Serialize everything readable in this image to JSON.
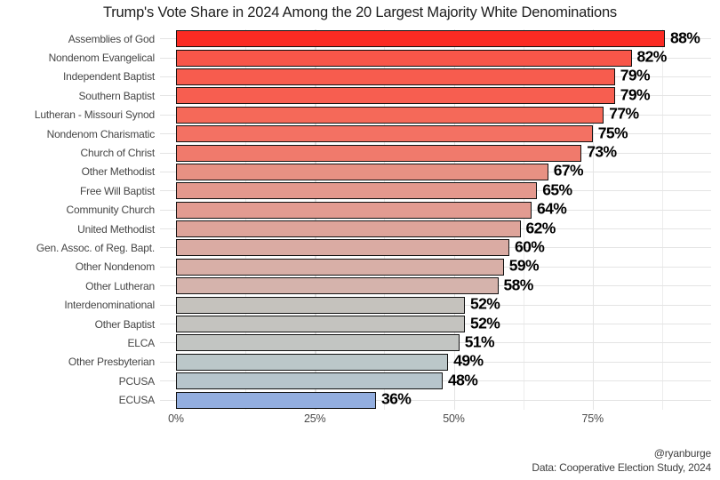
{
  "title": "Trump's Vote Share in 2024 Among the 20 Largest Majority White Denominations",
  "caption": {
    "handle": "@ryanburge",
    "source": "Data: Cooperative Election Study, 2024"
  },
  "chart_data": {
    "type": "bar",
    "orientation": "horizontal",
    "title": "Trump's Vote Share in 2024 Among the 20 Largest Majority White Denominations",
    "xlabel": "",
    "ylabel": "",
    "xlim": [
      0,
      96
    ],
    "grid": true,
    "legend": "none",
    "categories": [
      "Assemblies of God",
      "Nondenom Evangelical",
      "Independent Baptist",
      "Southern Baptist",
      "Lutheran - Missouri Synod",
      "Nondenom Charismatic",
      "Church of Christ",
      "Other Methodist",
      "Free Will Baptist",
      "Community Church",
      "United Methodist",
      "Gen. Assoc. of Reg. Bapt.",
      "Other Nondenom",
      "Other Lutheran",
      "Interdenominational",
      "Other Baptist",
      "ELCA",
      "Other Presbyterian",
      "PCUSA",
      "ECUSA"
    ],
    "values": [
      88,
      82,
      79,
      79,
      77,
      75,
      73,
      67,
      65,
      64,
      62,
      60,
      59,
      58,
      52,
      52,
      51,
      49,
      48,
      36
    ],
    "value_labels": [
      "88%",
      "82%",
      "79%",
      "79%",
      "77%",
      "75%",
      "73%",
      "67%",
      "65%",
      "64%",
      "62%",
      "60%",
      "59%",
      "58%",
      "52%",
      "52%",
      "51%",
      "49%",
      "48%",
      "36%"
    ],
    "bar_colors": [
      "#FB2B23",
      "#F85649",
      "#F75C4E",
      "#F75E50",
      "#F56959",
      "#F37163",
      "#F07A6C",
      "#E79183",
      "#E4988D",
      "#E29B91",
      "#DEA49A",
      "#DAABA3",
      "#D8AFA7",
      "#D5B3AC",
      "#C5C2BD",
      "#C4C3BF",
      "#C2C5C2",
      "#BBC7C9",
      "#B7C5CC",
      "#93AEDF"
    ],
    "bar_border_color": "#121212",
    "grid_color": "#e4e4e4",
    "x_ticks": [
      {
        "label": "0%",
        "value": 0
      },
      {
        "label": "25%",
        "value": 25
      },
      {
        "label": "50%",
        "value": 50
      },
      {
        "label": "75%",
        "value": 75
      }
    ],
    "x_minor_ticks": [
      12.5,
      37.5,
      62.5,
      87.5
    ]
  }
}
